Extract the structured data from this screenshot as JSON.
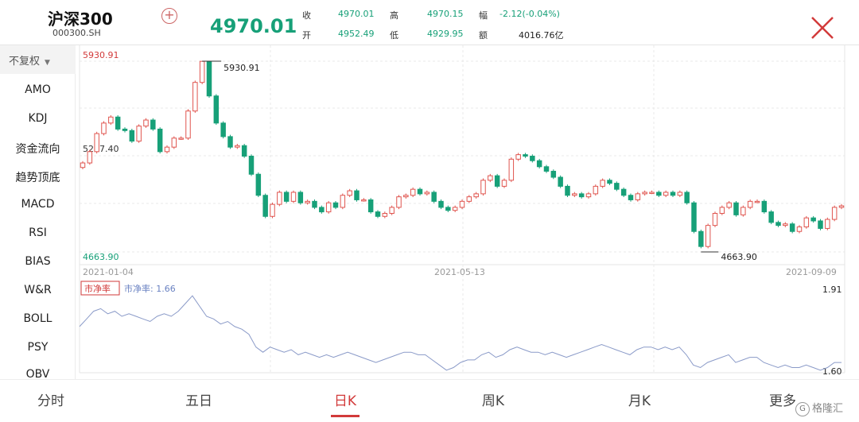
{
  "header": {
    "name": "沪深300",
    "code": "000300.SH",
    "last_price": "4970.01",
    "quotes": [
      {
        "label": "收",
        "value": "4970.01",
        "color": "green"
      },
      {
        "label": "高",
        "value": "4970.15",
        "color": "green"
      },
      {
        "label": "幅",
        "value": "-2.12(-0.04%)",
        "color": "green"
      },
      {
        "label": "开",
        "value": "4952.49",
        "color": "green"
      },
      {
        "label": "低",
        "value": "4929.95",
        "color": "green"
      },
      {
        "label": "额",
        "value": "4016.76亿",
        "color": "dark"
      }
    ],
    "add_icon": "plus-circle-icon",
    "close_icon": "close-icon"
  },
  "left_panel": {
    "restore_label": "不复权",
    "indicators": [
      "AMO",
      "KDJ",
      "资金流向",
      "趋势顶底",
      "MACD",
      "RSI",
      "BIAS",
      "W&R",
      "BOLL",
      "PSY",
      "OBV"
    ]
  },
  "colors": {
    "up": "#e0554f",
    "down": "#17a078",
    "accent": "#d23a3a",
    "pb_line": "#8a9ac8"
  },
  "chart_data": {
    "type": "candlestick",
    "y_axis_labels": [
      "5930.91",
      "5297.40",
      "4663.90"
    ],
    "max_annotation": "5930.91",
    "min_annotation": "4663.90",
    "x_labels": [
      "2021-01-04",
      "2021-05-13",
      "2021-09-09"
    ],
    "ylim": [
      4663.9,
      5930.91
    ],
    "close_path": [
      5255,
      5330,
      5450,
      5520,
      5560,
      5480,
      5470,
      5400,
      5500,
      5540,
      5480,
      5330,
      5360,
      5420,
      5420,
      5600,
      5790,
      5930,
      5700,
      5520,
      5430,
      5360,
      5370,
      5300,
      5180,
      5040,
      4900,
      4980,
      5060,
      5000,
      5060,
      4990,
      5000,
      4960,
      4930,
      4990,
      4960,
      5040,
      5070,
      5010,
      5010,
      4930,
      4900,
      4920,
      4960,
      5030,
      5040,
      5080,
      5050,
      5060,
      5000,
      4960,
      4940,
      4960,
      5000,
      5030,
      5050,
      5140,
      5170,
      5100,
      5140,
      5280,
      5310,
      5300,
      5270,
      5230,
      5200,
      5160,
      5100,
      5040,
      5050,
      5030,
      5050,
      5100,
      5140,
      5120,
      5080,
      5040,
      5010,
      5050,
      5060,
      5060,
      5040,
      5060,
      5040,
      5060,
      4990,
      4800,
      4700,
      4840,
      4920,
      4960,
      4990,
      4910,
      4960,
      5000,
      5000,
      4930,
      4860,
      4840,
      4850,
      4800,
      4830,
      4890,
      4870,
      4820,
      4880,
      4960,
      4970
    ],
    "pb_label_tag": "市净率",
    "pb_label": "市净率: 1.66",
    "pb_max_label": "1.91",
    "pb_min_label": "1.60",
    "pb_ylim": [
      1.6,
      1.91
    ],
    "pb_values": [
      1.78,
      1.81,
      1.84,
      1.85,
      1.83,
      1.84,
      1.82,
      1.83,
      1.82,
      1.81,
      1.8,
      1.82,
      1.83,
      1.82,
      1.84,
      1.87,
      1.9,
      1.86,
      1.82,
      1.81,
      1.79,
      1.8,
      1.78,
      1.77,
      1.75,
      1.7,
      1.68,
      1.7,
      1.69,
      1.68,
      1.69,
      1.67,
      1.68,
      1.67,
      1.66,
      1.67,
      1.66,
      1.67,
      1.68,
      1.67,
      1.66,
      1.65,
      1.64,
      1.65,
      1.66,
      1.67,
      1.68,
      1.68,
      1.67,
      1.67,
      1.65,
      1.63,
      1.61,
      1.62,
      1.64,
      1.65,
      1.65,
      1.67,
      1.68,
      1.66,
      1.67,
      1.69,
      1.7,
      1.69,
      1.68,
      1.68,
      1.67,
      1.68,
      1.67,
      1.66,
      1.67,
      1.68,
      1.69,
      1.7,
      1.71,
      1.7,
      1.69,
      1.68,
      1.67,
      1.69,
      1.7,
      1.7,
      1.69,
      1.7,
      1.69,
      1.7,
      1.67,
      1.63,
      1.62,
      1.64,
      1.65,
      1.66,
      1.67,
      1.64,
      1.65,
      1.66,
      1.66,
      1.64,
      1.63,
      1.62,
      1.63,
      1.62,
      1.62,
      1.63,
      1.62,
      1.61,
      1.62,
      1.64,
      1.64
    ]
  },
  "tabs": [
    {
      "label": "分时",
      "active": false
    },
    {
      "label": "五日",
      "active": false
    },
    {
      "label": "日K",
      "active": true
    },
    {
      "label": "周K",
      "active": false
    },
    {
      "label": "月K",
      "active": false
    },
    {
      "label": "更多",
      "active": false
    }
  ],
  "watermark": {
    "logo": "G",
    "text": "格隆汇"
  }
}
